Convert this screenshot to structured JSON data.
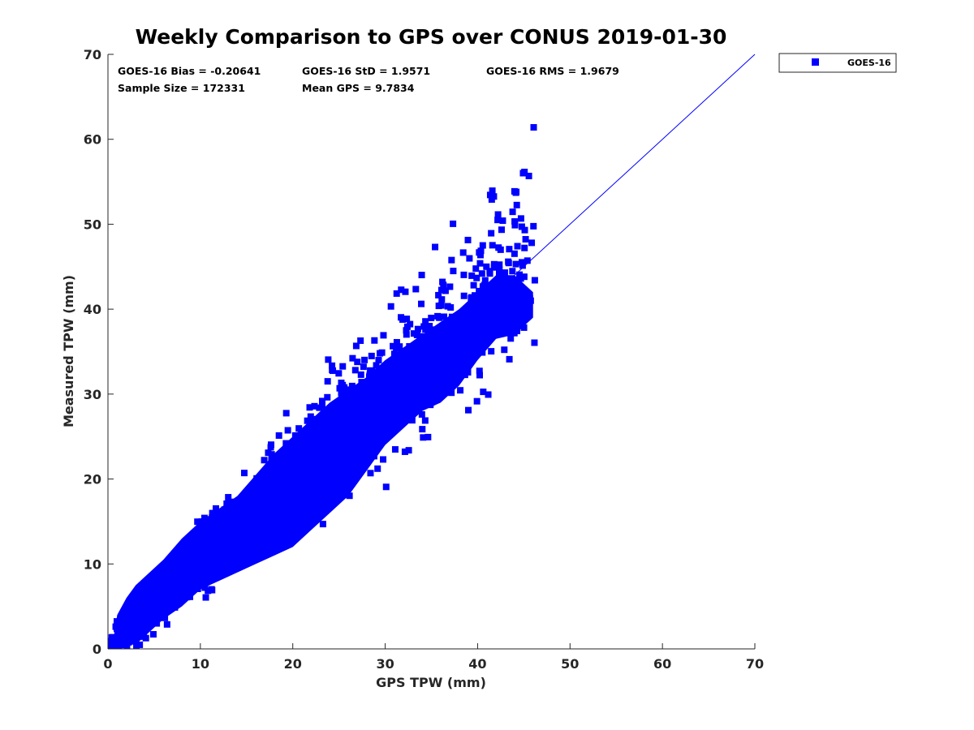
{
  "chart_data": {
    "type": "scatter",
    "title": "Weekly Comparison to GPS over CONUS 2019-01-30",
    "xlabel": "GPS TPW (mm)",
    "ylabel": "Measured TPW (mm)",
    "xlim": [
      0,
      70
    ],
    "ylim": [
      0,
      70
    ],
    "xticks": [
      0,
      10,
      20,
      30,
      40,
      50,
      60,
      70
    ],
    "yticks": [
      0,
      10,
      20,
      30,
      40,
      50,
      60,
      70
    ],
    "grid": false,
    "legend_position": "outside-top-right",
    "series": [
      {
        "name": "GOES-16",
        "color": "#0000ff",
        "marker": "square",
        "envelope": [
          [
            0.5,
            0.5
          ],
          [
            1,
            4
          ],
          [
            2,
            6
          ],
          [
            3,
            7.5
          ],
          [
            4,
            8.5
          ],
          [
            6,
            10.5
          ],
          [
            8,
            13
          ],
          [
            10,
            15
          ],
          [
            12,
            16.5
          ],
          [
            14,
            18
          ],
          [
            16,
            20.5
          ],
          [
            18,
            23
          ],
          [
            20,
            25
          ],
          [
            22,
            27
          ],
          [
            24,
            29
          ],
          [
            26,
            30.5
          ],
          [
            28,
            32
          ],
          [
            30,
            34
          ],
          [
            32,
            35.5
          ],
          [
            34,
            37
          ],
          [
            36,
            38.5
          ],
          [
            38,
            40
          ],
          [
            40,
            42
          ],
          [
            42,
            44
          ],
          [
            44,
            44
          ],
          [
            46,
            42
          ],
          [
            46,
            39
          ],
          [
            44,
            37
          ],
          [
            42,
            36.5
          ],
          [
            40,
            34
          ],
          [
            38,
            31
          ],
          [
            36,
            29
          ],
          [
            34,
            28
          ],
          [
            32,
            26
          ],
          [
            30,
            24
          ],
          [
            28,
            21
          ],
          [
            26,
            18
          ],
          [
            24,
            16
          ],
          [
            22,
            14
          ],
          [
            20,
            12
          ],
          [
            18,
            11
          ],
          [
            16,
            10
          ],
          [
            14,
            9
          ],
          [
            12,
            8
          ],
          [
            10,
            7
          ],
          [
            8,
            5
          ],
          [
            6,
            3.5
          ],
          [
            4,
            1.5
          ],
          [
            3,
            0.5
          ]
        ]
      }
    ],
    "identity_line": {
      "from": [
        0,
        0
      ],
      "to": [
        70,
        70
      ],
      "color": "#0000ff"
    }
  },
  "stats": {
    "bias": "GOES-16 Bias = -0.20641",
    "std": "GOES-16 StD = 1.9571",
    "rms": "GOES-16 RMS = 1.9679",
    "sample_size": "Sample Size = 172331",
    "mean_gps": "Mean GPS = 9.7834"
  },
  "legend": {
    "label": "GOES-16",
    "color": "#0000ff"
  }
}
